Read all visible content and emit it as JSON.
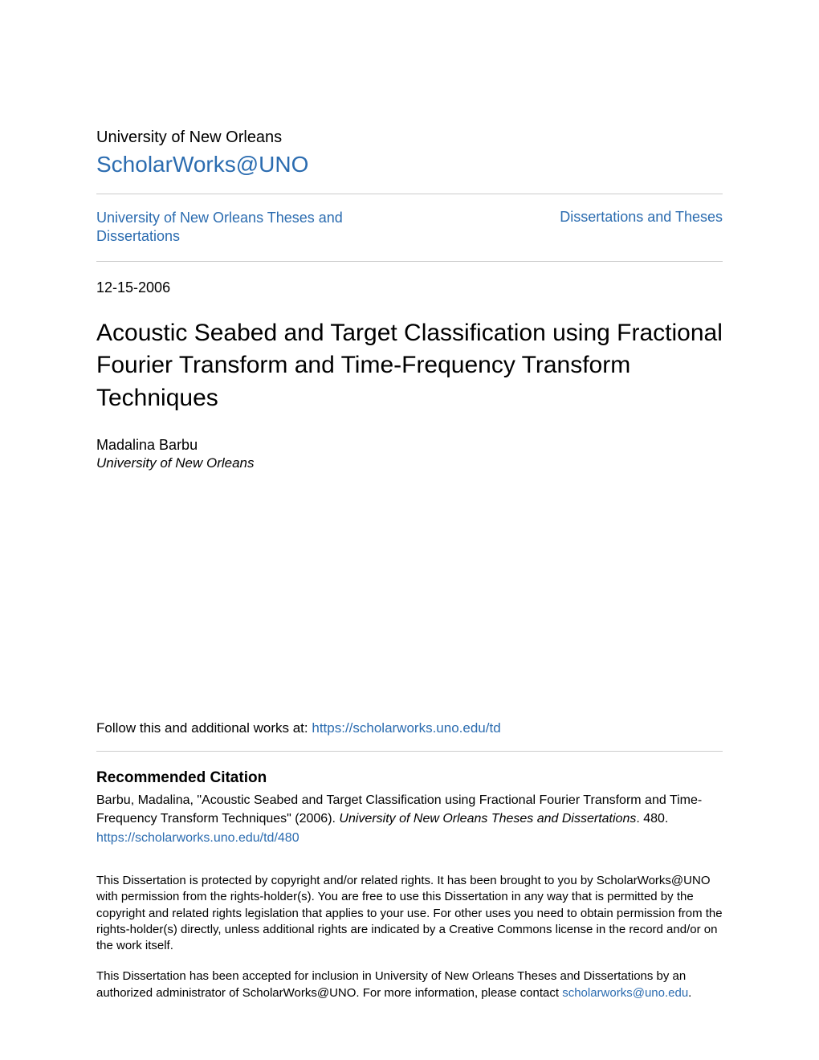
{
  "colors": {
    "link": "#2b6cb0",
    "text": "#000000",
    "divider": "#cccccc",
    "background": "#ffffff"
  },
  "typography": {
    "body_font": "Helvetica Neue, Helvetica, Arial, sans-serif",
    "university_fontsize": 20,
    "scholarworks_fontsize": 28,
    "breadcrumb_fontsize": 18,
    "title_fontsize": 30,
    "body_fontsize": 17
  },
  "header": {
    "university": "University of New Orleans",
    "site_name": "ScholarWorks@UNO"
  },
  "breadcrumb": {
    "left": "University of New Orleans Theses and Dissertations",
    "right": "Dissertations and Theses"
  },
  "meta": {
    "date": "12-15-2006"
  },
  "paper": {
    "title": "Acoustic Seabed and Target Classification using Fractional Fourier Transform and Time-Frequency Transform Techniques",
    "author_name": "Madalina Barbu",
    "author_affiliation": "University of New Orleans"
  },
  "follow": {
    "prefix": "Follow this and additional works at: ",
    "url": "https://scholarworks.uno.edu/td"
  },
  "citation": {
    "heading": "Recommended Citation",
    "text_part1": "Barbu, Madalina, \"Acoustic Seabed and Target Classification using Fractional Fourier Transform and Time-Frequency Transform Techniques\" (2006). ",
    "text_italic": "University of New Orleans Theses and Dissertations",
    "text_part2": ". 480.",
    "url": "https://scholarworks.uno.edu/td/480"
  },
  "disclaimer": {
    "paragraph1": "This Dissertation is protected by copyright and/or related rights. It has been brought to you by ScholarWorks@UNO with permission from the rights-holder(s). You are free to use this Dissertation in any way that is permitted by the copyright and related rights legislation that applies to your use. For other uses you need to obtain permission from the rights-holder(s) directly, unless additional rights are indicated by a Creative Commons license in the record and/or on the work itself.",
    "paragraph2_prefix": "This Dissertation has been accepted for inclusion in University of New Orleans Theses and Dissertations by an authorized administrator of ScholarWorks@UNO. For more information, please contact ",
    "paragraph2_link": "scholarworks@uno.edu",
    "paragraph2_suffix": "."
  }
}
